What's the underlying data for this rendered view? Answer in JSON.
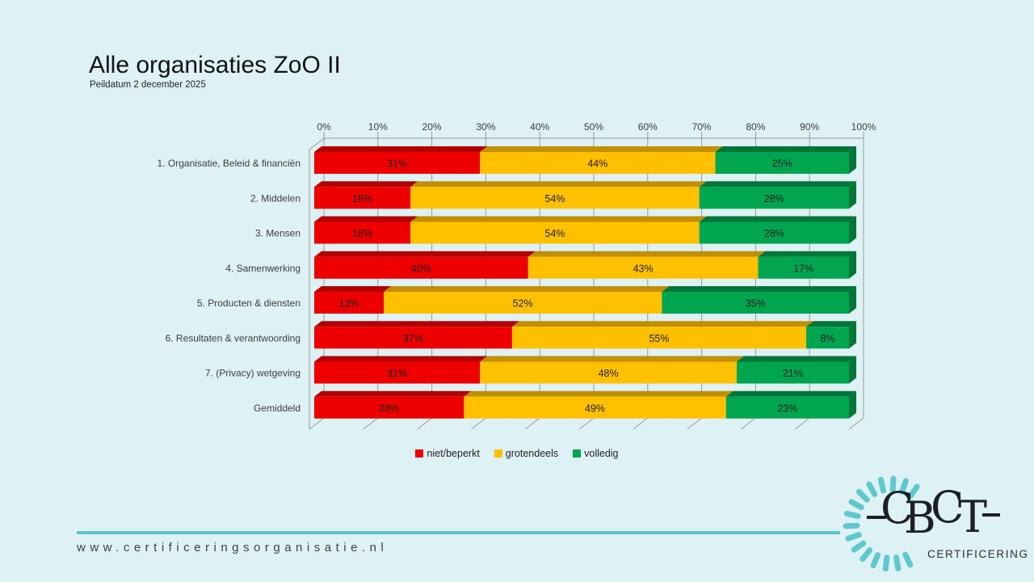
{
  "header": {
    "title": "Alle organisaties ZoO II",
    "subtitle": "Peildatum 2 december 2025"
  },
  "chart_data": {
    "type": "bar",
    "stacked": true,
    "orientation": "horizontal",
    "style": "3d",
    "title": "",
    "xlabel": "",
    "ylabel": "",
    "x_axis": {
      "ticks": [
        "0%",
        "10%",
        "20%",
        "30%",
        "40%",
        "50%",
        "60%",
        "70%",
        "80%",
        "90%",
        "100%"
      ],
      "min": 0,
      "max": 100,
      "unit": "%",
      "position": "top"
    },
    "grid": true,
    "legend_position": "bottom",
    "categories": [
      "1. Organisatie, Beleid & financiën",
      "2. Middelen",
      "3. Mensen",
      "4. Samenwerking",
      "5. Producten & diensten",
      "6. Resultaten & verantwoording",
      "7. (Privacy) wetgeving",
      "Gemiddeld"
    ],
    "series": [
      {
        "name": "niet/beperkt",
        "color": "#ee0000",
        "color_dark": "#b20000",
        "values": [
          31,
          18,
          18,
          40,
          13,
          37,
          31,
          28
        ]
      },
      {
        "name": "grotendeels",
        "color": "#ffc000",
        "color_dark": "#c18f00",
        "values": [
          44,
          54,
          54,
          43,
          52,
          55,
          48,
          49
        ]
      },
      {
        "name": "volledig",
        "color": "#00a550",
        "color_dark": "#007638",
        "values": [
          25,
          28,
          28,
          17,
          35,
          8,
          21,
          23
        ]
      }
    ],
    "value_suffix": "%",
    "gridline_color": "#9b9b9b",
    "axis_text_color": "#3d3d3d",
    "label_text_color": "#1f1f1f"
  },
  "footer": {
    "url": "www.certificeringsorganisatie.nl",
    "line_color": "#5bc6cc"
  },
  "logo": {
    "text": "CBCT",
    "subtext": "CERTIFICERING",
    "dash_color": "#5ec8cf"
  },
  "colors": {
    "background": "#def1f4"
  }
}
